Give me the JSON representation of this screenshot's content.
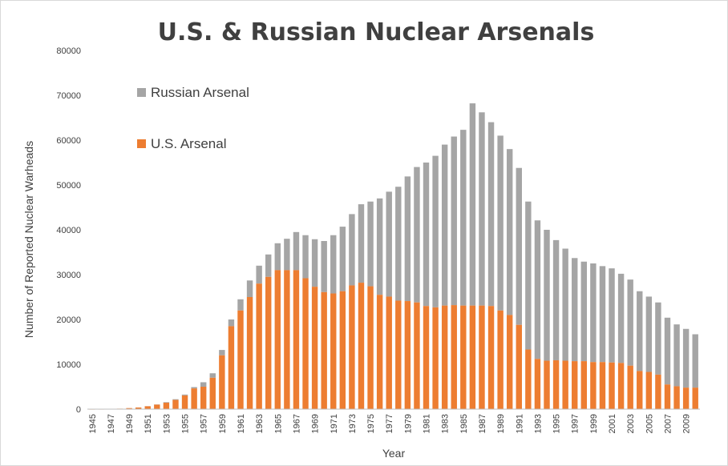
{
  "chart_data": {
    "type": "bar",
    "stacked": true,
    "title": "U.S. & Russian Nuclear Arsenals",
    "xlabel": "Year",
    "ylabel": "Number of Reported Nuclear Warheads",
    "ylim": [
      0,
      80000
    ],
    "yticks": [
      0,
      10000,
      20000,
      30000,
      40000,
      50000,
      60000,
      70000,
      80000
    ],
    "grid": false,
    "legend_position": "top-left",
    "categories": [
      1945,
      1946,
      1947,
      1948,
      1949,
      1950,
      1951,
      1952,
      1953,
      1954,
      1955,
      1956,
      1957,
      1958,
      1959,
      1960,
      1961,
      1962,
      1963,
      1964,
      1965,
      1966,
      1967,
      1968,
      1969,
      1970,
      1971,
      1972,
      1973,
      1974,
      1975,
      1976,
      1977,
      1978,
      1979,
      1980,
      1981,
      1982,
      1983,
      1984,
      1985,
      1986,
      1987,
      1988,
      1989,
      1990,
      1991,
      1992,
      1993,
      1994,
      1995,
      1996,
      1997,
      1998,
      1999,
      2000,
      2001,
      2002,
      2003,
      2004,
      2005,
      2006,
      2007,
      2008,
      2009,
      2010
    ],
    "x_tick_labels": [
      "1945",
      "1947",
      "1949",
      "1951",
      "1953",
      "1955",
      "1957",
      "1959",
      "1961",
      "1963",
      "1965",
      "1967",
      "1969",
      "1971",
      "1973",
      "1975",
      "1977",
      "1979",
      "1981",
      "1983",
      "1985",
      "1987",
      "1989",
      "1991",
      "1993",
      "1995",
      "1997",
      "1999",
      "2001",
      "2003",
      "2005",
      "2007",
      "2009"
    ],
    "series": [
      {
        "name": "U.S. Arsenal",
        "color": "#ed7d31",
        "values": [
          6,
          11,
          32,
          110,
          235,
          369,
          640,
          1005,
          1436,
          2063,
          3057,
          4618,
          6444,
          9822,
          15468,
          20434,
          24111,
          27297,
          29249,
          30751,
          31982,
          32040,
          31233,
          29224,
          27342,
          26119,
          26365,
          27296,
          28335,
          28170,
          27052,
          25956,
          25099,
          24243,
          24107,
          23764,
          23031,
          22937,
          23154,
          23228,
          23135,
          23254,
          22643,
          22217,
          22029,
          21392,
          19008,
          13708,
          11511,
          10979,
          10904,
          11011,
          10903,
          10732,
          10685,
          10577,
          10526,
          10457,
          10027,
          8570,
          8360,
          7853,
          5709,
          5273,
          5113,
          5066
        ],
        "display_values": [
          6,
          11,
          32,
          110,
          235,
          369,
          640,
          1005,
          1436,
          2063,
          3057,
          4618,
          5000,
          7000,
          12000,
          18500,
          22000,
          25000,
          28000,
          29500,
          31000,
          31000,
          31000,
          29200,
          27300,
          26100,
          25800,
          26300,
          27600,
          28200,
          27400,
          25500,
          25100,
          24200,
          24100,
          23800,
          23000,
          22700,
          23100,
          23200,
          23100,
          23100,
          23100,
          23000,
          22000,
          21000,
          18800,
          13300,
          11200,
          10800,
          10900,
          10800,
          10700,
          10700,
          10500,
          10500,
          10400,
          10300,
          9700,
          8500,
          8300,
          7700,
          5500,
          5100,
          4800,
          4800
        ]
      },
      {
        "name": "Russian Arsenal",
        "color": "#a5a5a5",
        "totals": [
          6,
          11,
          32,
          110,
          236,
          374,
          665,
          1055,
          1556,
          2213,
          3257,
          4918,
          6000,
          8000,
          13200,
          20000,
          24500,
          28700,
          32000,
          34500,
          37000,
          38000,
          39500,
          38800,
          37900,
          37500,
          38800,
          40700,
          43500,
          45700,
          46300,
          47000,
          48500,
          49600,
          51900,
          54000,
          55000,
          56500,
          59000,
          60800,
          62300,
          68200,
          66200,
          64000,
          61000,
          58000,
          53800,
          46300,
          42100,
          40000,
          37700,
          35800,
          33700,
          32900,
          32500,
          31900,
          31400,
          30200,
          28900,
          26300,
          25100,
          23800,
          20400,
          18900,
          17900,
          16700
        ]
      }
    ]
  }
}
